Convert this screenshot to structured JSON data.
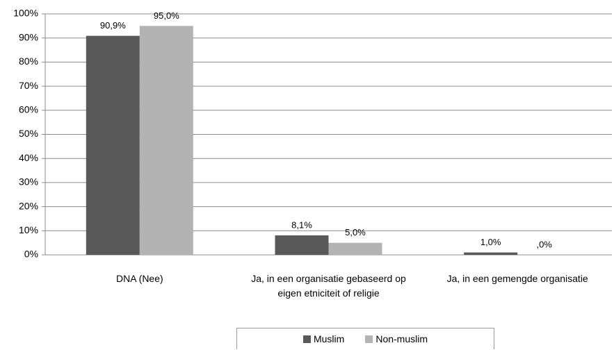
{
  "chart_data": {
    "type": "bar",
    "categories": [
      "DNA (Nee)",
      "Ja, in een organisatie gebaseerd op eigen etniciteit of religie",
      "Ja, in een gemengde organisatie"
    ],
    "series": [
      {
        "name": "Muslim",
        "color": "#595959",
        "values": [
          90.9,
          8.1,
          1.0
        ],
        "value_labels": [
          "90,9%",
          "8,1%",
          "1,0%"
        ]
      },
      {
        "name": "Non-muslim",
        "color": "#b3b3b3",
        "values": [
          95.0,
          5.0,
          0.0
        ],
        "value_labels": [
          "95,0%",
          "5,0%",
          ",0%"
        ]
      }
    ],
    "ylim": [
      0,
      100
    ],
    "yticks": [
      {
        "value": 0,
        "label": "0%"
      },
      {
        "value": 10,
        "label": "10%"
      },
      {
        "value": 20,
        "label": "20%"
      },
      {
        "value": 30,
        "label": "30%"
      },
      {
        "value": 40,
        "label": "40%"
      },
      {
        "value": 50,
        "label": "50%"
      },
      {
        "value": 60,
        "label": "60%"
      },
      {
        "value": 70,
        "label": "70%"
      },
      {
        "value": 80,
        "label": "80%"
      },
      {
        "value": 90,
        "label": "90%"
      },
      {
        "value": 100,
        "label": "100%"
      }
    ],
    "grid": true,
    "legend": "bottom"
  }
}
